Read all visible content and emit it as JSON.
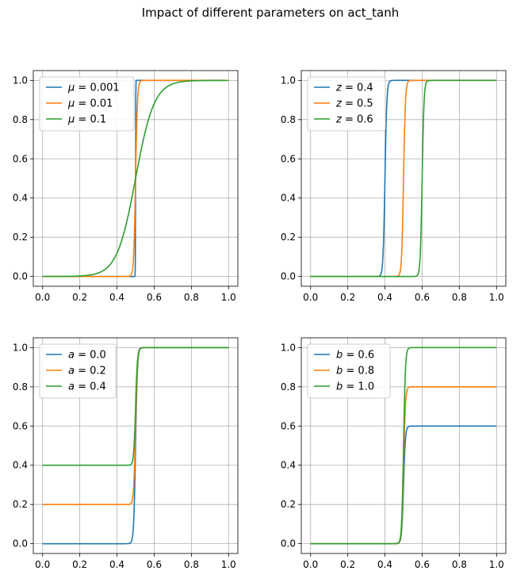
{
  "figure": {
    "title": "Impact of different parameters on act_tanh"
  },
  "chart_data": [
    {
      "type": "line",
      "function": "0.5*(b-a)*(1+tanh((x-z)/mu)) + a",
      "varied_parameter": "mu",
      "defaults": {
        "mu": 0.01,
        "z": 0.5,
        "a": 0.0,
        "b": 1.0
      },
      "x_range": [
        0,
        1
      ],
      "xlim": [
        -0.05,
        1.05
      ],
      "ylim": [
        -0.05,
        1.05
      ],
      "x_ticks": [
        "0.0",
        "0.2",
        "0.4",
        "0.6",
        "0.8",
        "1.0"
      ],
      "y_ticks": [
        "0.0",
        "0.2",
        "0.4",
        "0.6",
        "0.8",
        "1.0"
      ],
      "grid": true,
      "legend_position": "upper-left",
      "series": [
        {
          "name": "μ = 0.001",
          "symbol": "μ",
          "value_text": " = 0.001",
          "param_value": 0.001,
          "color": "#1f77b4"
        },
        {
          "name": "μ = 0.01",
          "symbol": "μ",
          "value_text": " = 0.01",
          "param_value": 0.01,
          "color": "#ff7f0e"
        },
        {
          "name": "μ = 0.1",
          "symbol": "μ",
          "value_text": " = 0.1",
          "param_value": 0.1,
          "color": "#2ca02c"
        }
      ]
    },
    {
      "type": "line",
      "function": "0.5*(b-a)*(1+tanh((x-z)/mu)) + a",
      "varied_parameter": "z",
      "defaults": {
        "mu": 0.01,
        "z": 0.5,
        "a": 0.0,
        "b": 1.0
      },
      "x_range": [
        0,
        1
      ],
      "xlim": [
        -0.05,
        1.05
      ],
      "ylim": [
        -0.05,
        1.05
      ],
      "x_ticks": [
        "0.0",
        "0.2",
        "0.4",
        "0.6",
        "0.8",
        "1.0"
      ],
      "y_ticks": [
        "0.0",
        "0.2",
        "0.4",
        "0.6",
        "0.8",
        "1.0"
      ],
      "grid": true,
      "legend_position": "upper-left",
      "series": [
        {
          "name": "z = 0.4",
          "symbol": "z",
          "value_text": " = 0.4",
          "param_value": 0.4,
          "color": "#1f77b4"
        },
        {
          "name": "z = 0.5",
          "symbol": "z",
          "value_text": " = 0.5",
          "param_value": 0.5,
          "color": "#ff7f0e"
        },
        {
          "name": "z = 0.6",
          "symbol": "z",
          "value_text": " = 0.6",
          "param_value": 0.6,
          "color": "#2ca02c"
        }
      ]
    },
    {
      "type": "line",
      "function": "0.5*(b-a)*(1+tanh((x-z)/mu)) + a",
      "varied_parameter": "a",
      "defaults": {
        "mu": 0.01,
        "z": 0.5,
        "a": 0.0,
        "b": 1.0
      },
      "x_range": [
        0,
        1
      ],
      "xlim": [
        -0.05,
        1.05
      ],
      "ylim": [
        -0.05,
        1.05
      ],
      "x_ticks": [
        "0.0",
        "0.2",
        "0.4",
        "0.6",
        "0.8",
        "1.0"
      ],
      "y_ticks": [
        "0.0",
        "0.2",
        "0.4",
        "0.6",
        "0.8",
        "1.0"
      ],
      "grid": true,
      "legend_position": "upper-left",
      "series": [
        {
          "name": "a = 0.0",
          "symbol": "a",
          "value_text": " = 0.0",
          "param_value": 0.0,
          "color": "#1f77b4"
        },
        {
          "name": "a = 0.2",
          "symbol": "a",
          "value_text": " = 0.2",
          "param_value": 0.2,
          "color": "#ff7f0e"
        },
        {
          "name": "a = 0.4",
          "symbol": "a",
          "value_text": " = 0.4",
          "param_value": 0.4,
          "color": "#2ca02c"
        }
      ]
    },
    {
      "type": "line",
      "function": "0.5*(b-a)*(1+tanh((x-z)/mu)) + a",
      "varied_parameter": "b",
      "defaults": {
        "mu": 0.01,
        "z": 0.5,
        "a": 0.0,
        "b": 1.0
      },
      "x_range": [
        0,
        1
      ],
      "xlim": [
        -0.05,
        1.05
      ],
      "ylim": [
        -0.05,
        1.05
      ],
      "x_ticks": [
        "0.0",
        "0.2",
        "0.4",
        "0.6",
        "0.8",
        "1.0"
      ],
      "y_ticks": [
        "0.0",
        "0.2",
        "0.4",
        "0.6",
        "0.8",
        "1.0"
      ],
      "grid": true,
      "legend_position": "upper-left",
      "series": [
        {
          "name": "b = 0.6",
          "symbol": "b",
          "value_text": " = 0.6",
          "param_value": 0.6,
          "color": "#1f77b4"
        },
        {
          "name": "b = 0.8",
          "symbol": "b",
          "value_text": " = 0.8",
          "param_value": 0.8,
          "color": "#ff7f0e"
        },
        {
          "name": "b = 1.0",
          "symbol": "b",
          "value_text": " = 1.0",
          "param_value": 1.0,
          "color": "#2ca02c"
        }
      ]
    }
  ]
}
